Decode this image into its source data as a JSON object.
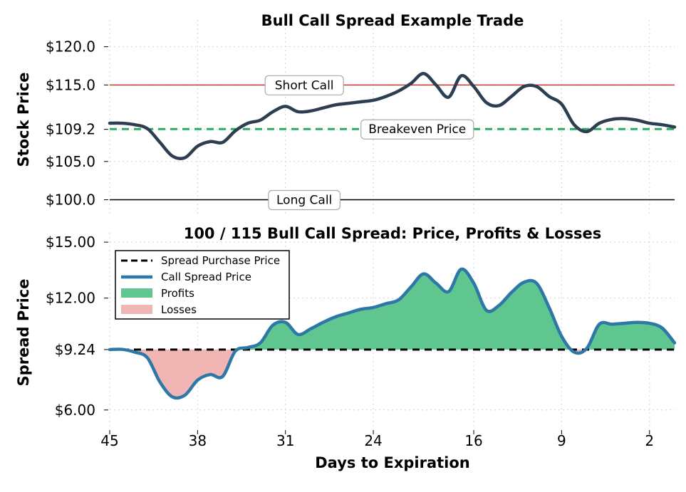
{
  "chart_data": [
    {
      "type": "line",
      "title": "Bull Call Spread Example Trade",
      "xlabel": "",
      "ylabel": "Stock Price",
      "xlim": [
        45,
        0
      ],
      "ylim": [
        98,
        123.5
      ],
      "yticks": [
        100.0,
        105.0,
        109.2,
        115.0,
        120.0
      ],
      "ytick_labels": [
        "$100.0",
        "$105.0",
        "$109.2",
        "$115.0",
        "$120.0"
      ],
      "xticks": [
        45,
        38,
        31,
        24,
        16,
        9,
        2
      ],
      "grid": true,
      "colors": {
        "price": "#2c3e50",
        "short_call": "#c0392b",
        "breakeven": "#27ae60",
        "long_call": "#000000"
      },
      "series": [
        {
          "x": [
            45,
            44,
            43,
            42,
            41,
            40,
            39,
            38,
            37,
            36,
            35,
            34,
            33,
            32,
            31,
            30,
            29,
            28,
            27,
            26,
            25,
            24,
            23,
            22,
            21,
            20,
            19,
            18,
            17,
            16,
            15,
            14,
            13,
            12,
            11,
            10,
            9,
            8,
            7,
            6,
            5,
            4,
            3,
            2,
            1,
            0
          ],
          "y": [
            110.0,
            110.0,
            109.8,
            109.3,
            107.5,
            105.7,
            105.5,
            107.0,
            107.6,
            107.5,
            109.0,
            110.0,
            110.4,
            111.5,
            112.2,
            111.5,
            111.6,
            112.0,
            112.4,
            112.6,
            112.8,
            113.0,
            113.5,
            114.2,
            115.2,
            116.5,
            115.0,
            113.4,
            116.2,
            114.8,
            112.7,
            112.3,
            113.5,
            114.8,
            114.8,
            113.5,
            112.5,
            109.8,
            108.9,
            110.0,
            110.5,
            110.6,
            110.4,
            110.0,
            109.8,
            109.5
          ]
        }
      ],
      "hlines": [
        {
          "label": "Short Call",
          "y": 115.0
        },
        {
          "label": "Breakeven Price",
          "y": 109.24
        },
        {
          "label": "Long Call",
          "y": 100.0
        }
      ]
    },
    {
      "type": "area",
      "title": "100 / 115 Bull Call Spread: Price, Profits & Losses",
      "xlabel": "Days to Expiration",
      "ylabel": "Spread Price",
      "xlim": [
        45,
        0
      ],
      "ylim": [
        5.0,
        15.5
      ],
      "yticks": [
        6.0,
        9.24,
        12.0,
        15.0
      ],
      "ytick_labels": [
        "$6.00",
        "$9.24",
        "$12.00",
        "$15.00"
      ],
      "xticks": [
        45,
        38,
        31,
        24,
        16,
        9,
        2
      ],
      "xtick_labels": [
        "45",
        "38",
        "31",
        "24",
        "16",
        "9",
        "2"
      ],
      "grid": true,
      "purchase_price": 9.24,
      "colors": {
        "spread": "#2e78a8",
        "purchase": "#000000",
        "profits": "#5ec68e",
        "losses": "#f1b5b4"
      },
      "legend": {
        "placement": "top-left",
        "entries": [
          "Spread Purchase Price",
          "Call Spread Price",
          "Profits",
          "Losses"
        ]
      },
      "series": [
        {
          "x": [
            45,
            44,
            43,
            42,
            41,
            40,
            39,
            38,
            37,
            36,
            35,
            34,
            33,
            32,
            31,
            30,
            29,
            28,
            27,
            26,
            25,
            24,
            23,
            22,
            21,
            20,
            19,
            18,
            17,
            16,
            15,
            14,
            13,
            12,
            11,
            10,
            9,
            8,
            7,
            6,
            5,
            4,
            3,
            2,
            1,
            0
          ],
          "y": [
            9.24,
            9.25,
            9.1,
            8.8,
            7.5,
            6.7,
            6.8,
            7.6,
            7.9,
            7.8,
            9.15,
            9.35,
            9.6,
            10.55,
            10.7,
            10.05,
            10.35,
            10.7,
            11.0,
            11.2,
            11.4,
            11.5,
            11.7,
            11.9,
            12.6,
            13.3,
            12.8,
            12.35,
            13.55,
            12.8,
            11.35,
            11.6,
            12.3,
            12.85,
            12.8,
            11.5,
            9.95,
            9.1,
            9.3,
            10.6,
            10.6,
            10.65,
            10.7,
            10.65,
            10.4,
            9.6
          ]
        }
      ]
    }
  ]
}
